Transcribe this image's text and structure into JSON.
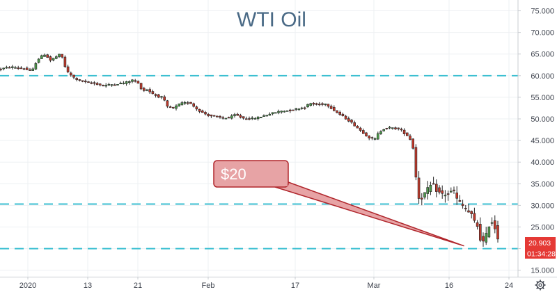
{
  "chart_data": {
    "type": "candlestick",
    "title": "WTI Oil",
    "ylim": [
      13.5,
      77.5
    ],
    "y_ticks": [
      "15.000",
      "20.000",
      "25.000",
      "30.000",
      "35.000",
      "40.000",
      "45.000",
      "50.000",
      "55.000",
      "60.000",
      "65.000",
      "70.000",
      "75.000"
    ],
    "x_ticks": [
      "2020",
      "13",
      "21",
      "Feb",
      "17",
      "Mar",
      "16",
      "24"
    ],
    "grid": true,
    "horizontal_levels": [
      60.0,
      30.3,
      20.0
    ],
    "last_price": "20.903",
    "countdown": "01:34:28",
    "callout": {
      "label": "$20",
      "target_value": 20.0
    },
    "path": [
      [
        0,
        61.5
      ],
      [
        18,
        62
      ],
      [
        35,
        61.7
      ],
      [
        48,
        61
      ],
      [
        55,
        63.5
      ],
      [
        60,
        64.3
      ],
      [
        67,
        65
      ],
      [
        74,
        63.5
      ],
      [
        82,
        64.3
      ],
      [
        89,
        65
      ],
      [
        93,
        63.7
      ],
      [
        97,
        61.2
      ],
      [
        101,
        60.5
      ],
      [
        110,
        59.3
      ],
      [
        120,
        58.7
      ],
      [
        135,
        58.3
      ],
      [
        150,
        57.7
      ],
      [
        165,
        58
      ],
      [
        180,
        58.3
      ],
      [
        193,
        59
      ],
      [
        200,
        58.3
      ],
      [
        207,
        56.5
      ],
      [
        213,
        56.8
      ],
      [
        220,
        56
      ],
      [
        228,
        55.2
      ],
      [
        236,
        55
      ],
      [
        242,
        52.8
      ],
      [
        250,
        52.4
      ],
      [
        262,
        53.6
      ],
      [
        275,
        53.8
      ],
      [
        283,
        52.5
      ],
      [
        292,
        51.5
      ],
      [
        302,
        50.8
      ],
      [
        312,
        50.5
      ],
      [
        322,
        50.2
      ],
      [
        332,
        50.3
      ],
      [
        340,
        51
      ],
      [
        350,
        50.2
      ],
      [
        362,
        50
      ],
      [
        375,
        50.4
      ],
      [
        390,
        51.2
      ],
      [
        405,
        51.8
      ],
      [
        420,
        52
      ],
      [
        430,
        52.4
      ],
      [
        440,
        52.7
      ],
      [
        447,
        53.6
      ],
      [
        455,
        53.3
      ],
      [
        462,
        53.4
      ],
      [
        470,
        53.5
      ],
      [
        478,
        52.5
      ],
      [
        486,
        51.5
      ],
      [
        495,
        50.5
      ],
      [
        505,
        49.4
      ],
      [
        515,
        48
      ],
      [
        525,
        46.6
      ],
      [
        533,
        45.6
      ],
      [
        540,
        45.2
      ],
      [
        546,
        46.8
      ],
      [
        553,
        47.7
      ],
      [
        560,
        48
      ],
      [
        568,
        47.8
      ],
      [
        576,
        47.7
      ],
      [
        584,
        46.5
      ],
      [
        590,
        45.8
      ],
      [
        595,
        43.5
      ],
      [
        598,
        41.5
      ],
      [
        600,
        35
      ],
      [
        603,
        32
      ],
      [
        606,
        31.5
      ],
      [
        610,
        32.3
      ],
      [
        616,
        33.5
      ],
      [
        622,
        34.8
      ],
      [
        628,
        33.8
      ],
      [
        634,
        32.7
      ],
      [
        640,
        32.5
      ],
      [
        646,
        32.7
      ],
      [
        650,
        33
      ],
      [
        655,
        33.4
      ],
      [
        659,
        31
      ],
      [
        663,
        30.5
      ],
      [
        668,
        29.6
      ],
      [
        674,
        28.6
      ],
      [
        680,
        27.5
      ],
      [
        684,
        26
      ],
      [
        688,
        25.2
      ],
      [
        692,
        22.3
      ],
      [
        696,
        21.4
      ],
      [
        700,
        22.8
      ],
      [
        704,
        25.4
      ],
      [
        708,
        26.5
      ],
      [
        712,
        25.2
      ],
      [
        716,
        23.5
      ],
      [
        719,
        20.9
      ]
    ]
  }
}
